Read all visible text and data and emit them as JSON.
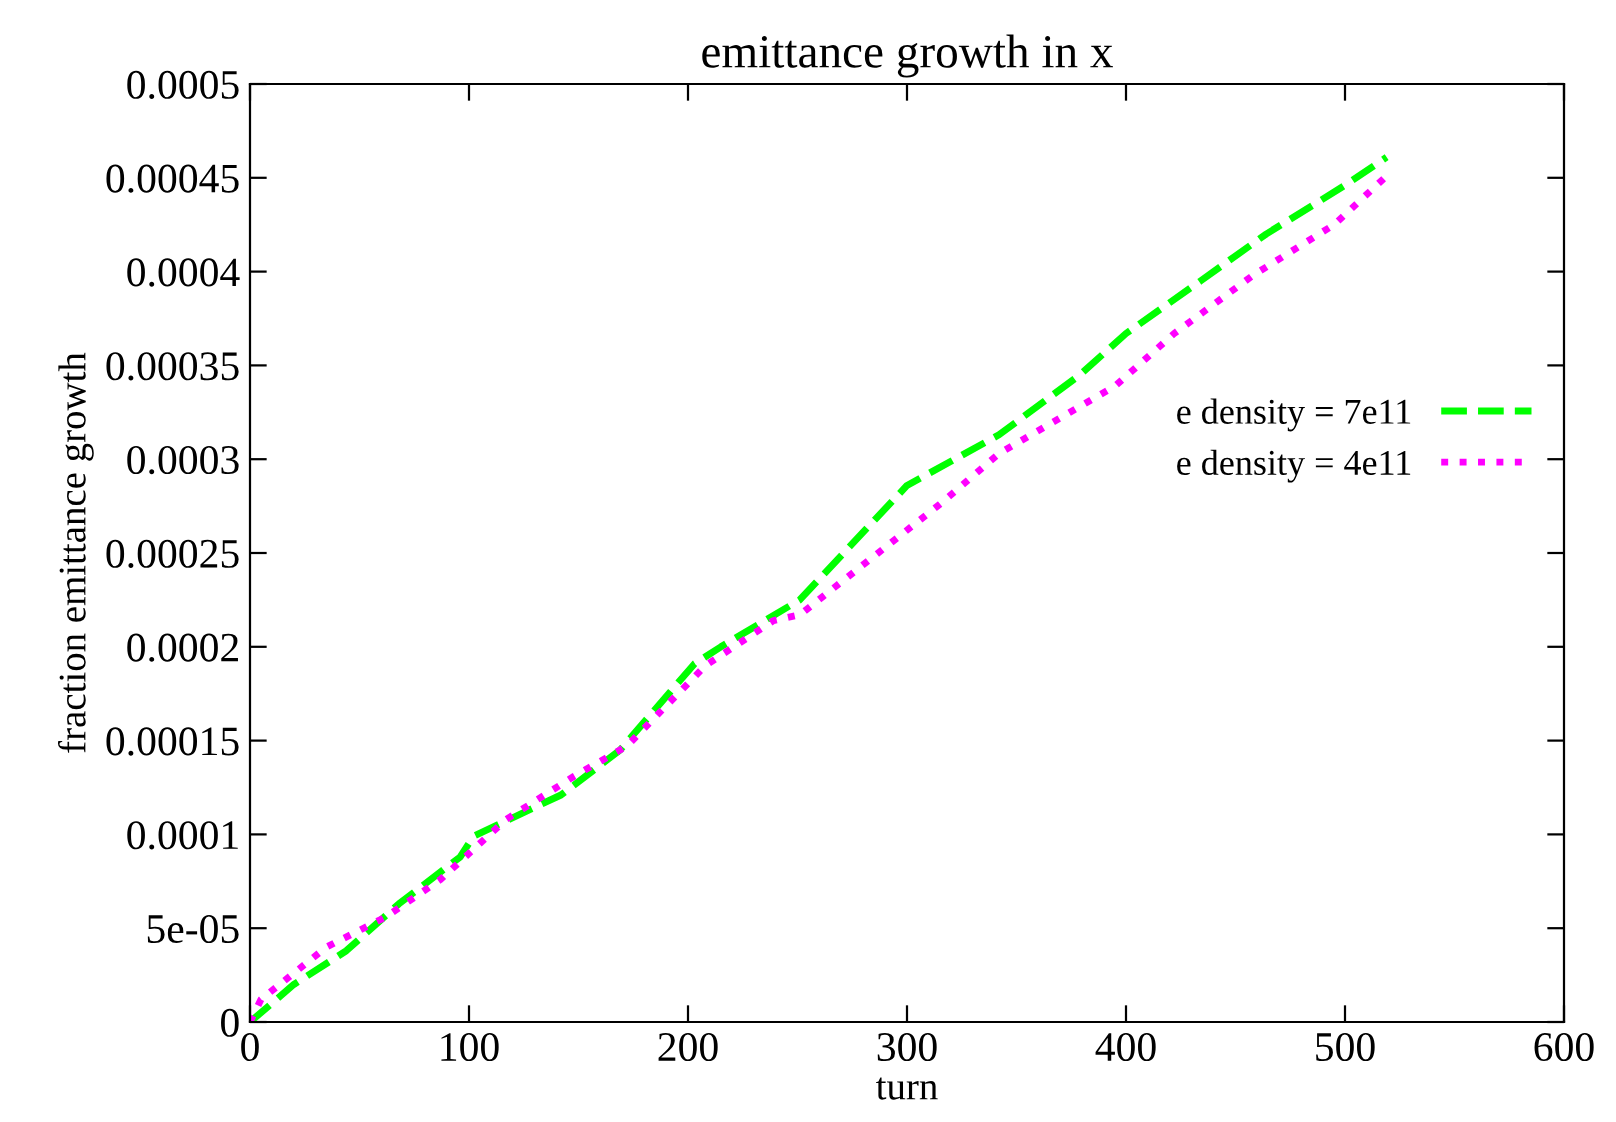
{
  "chart_data": {
    "type": "line",
    "title": "emittance growth in x",
    "xlabel": "turn",
    "ylabel": "fraction emittance growth",
    "xlim": [
      0,
      600
    ],
    "xticks": [
      0,
      100,
      200,
      300,
      400,
      500,
      600
    ],
    "ylim": [
      0,
      0.0005
    ],
    "yticks": [
      0,
      {
        "value": 5e-05,
        "label": "5e-05"
      },
      0.0001,
      0.00015,
      0.0002,
      0.00025,
      0.0003,
      0.00035,
      0.0004,
      0.00045,
      0.0005
    ],
    "legend": "right",
    "grid": false,
    "series": [
      {
        "name": "e density = 7e11",
        "color": "#00ff00",
        "line_style": "dashed",
        "x": [
          0,
          20,
          44,
          68,
          96,
          102,
          142,
          169,
          203,
          215,
          251,
          300,
          342,
          379,
          400,
          434,
          464,
          500,
          519
        ],
        "values": [
          0,
          2e-05,
          3.8e-05,
          6.3e-05,
          8.8e-05,
          9.9e-05,
          0.000121,
          0.000145,
          0.000191,
          0.0002,
          0.000225,
          0.000286,
          0.000313,
          0.000345,
          0.000367,
          0.000395,
          0.00042,
          0.000446,
          0.000461
        ]
      },
      {
        "name": "e density = 4e11",
        "color": "#ff00ff",
        "line_style": "dotted",
        "x": [
          0,
          5,
          35,
          62,
          87,
          117,
          148,
          172,
          208,
          239,
          251,
          315,
          342,
          395,
          422,
          458,
          495,
          519
        ],
        "values": [
          0,
          1.2e-05,
          4e-05,
          5.6e-05,
          7.6e-05,
          0.000108,
          0.000131,
          0.000147,
          0.00019,
          0.000214,
          0.000217,
          0.000276,
          0.000303,
          0.000339,
          0.000367,
          0.000398,
          0.000425,
          0.000451
        ]
      }
    ]
  }
}
